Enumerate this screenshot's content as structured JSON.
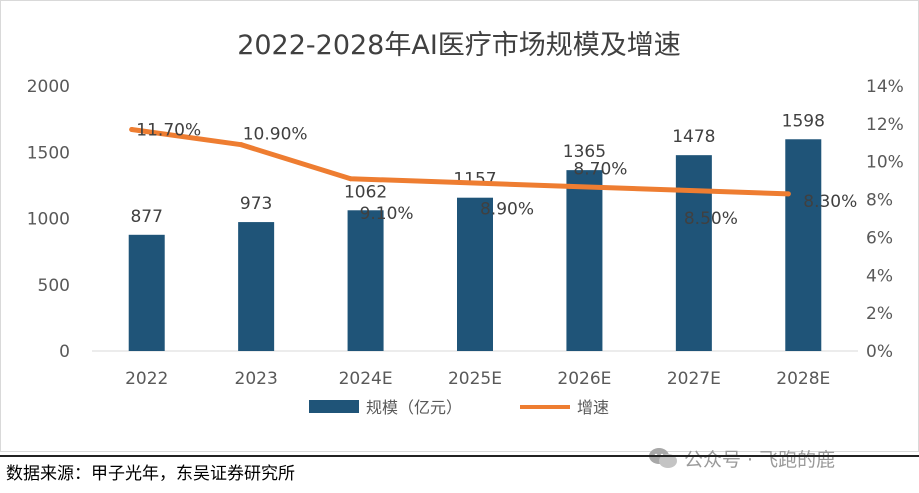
{
  "chart_data": {
    "type": "bar",
    "title": "2022-2028年AI医疗市场规模及增速",
    "categories": [
      "2022",
      "2023",
      "2024E",
      "2025E",
      "2026E",
      "2027E",
      "2028E"
    ],
    "series": [
      {
        "name": "规模（亿元）",
        "type": "bar",
        "axis": "left",
        "values": [
          877,
          973,
          1062,
          1157,
          1365,
          1478,
          1598
        ],
        "labels": [
          "877",
          "973",
          "1062",
          "1157",
          "1365",
          "1478",
          "1598"
        ],
        "color": "#1f5478"
      },
      {
        "name": "增速",
        "type": "line",
        "axis": "right",
        "values": [
          11.7,
          10.9,
          9.1,
          8.9,
          8.7,
          8.5,
          8.3
        ],
        "labels": [
          "11.70%",
          "10.90%",
          "9.10%",
          "8.90%",
          "8.70%",
          "8.50%",
          "8.30%"
        ],
        "color": "#ee7d31"
      }
    ],
    "y_left": {
      "ylim": [
        0,
        2000
      ],
      "ticks": [
        "0",
        "500",
        "1000",
        "1500",
        "2000"
      ]
    },
    "y_right": {
      "ylim": [
        0,
        14
      ],
      "ticks": [
        "0%",
        "2%",
        "4%",
        "6%",
        "8%",
        "10%",
        "12%",
        "14%"
      ]
    },
    "grid": false,
    "legend": "bottom"
  },
  "footer": {
    "source": "数据来源：甲子光年，东吴证券研究所",
    "watermark": "公众号 · 飞跑的鹿"
  }
}
